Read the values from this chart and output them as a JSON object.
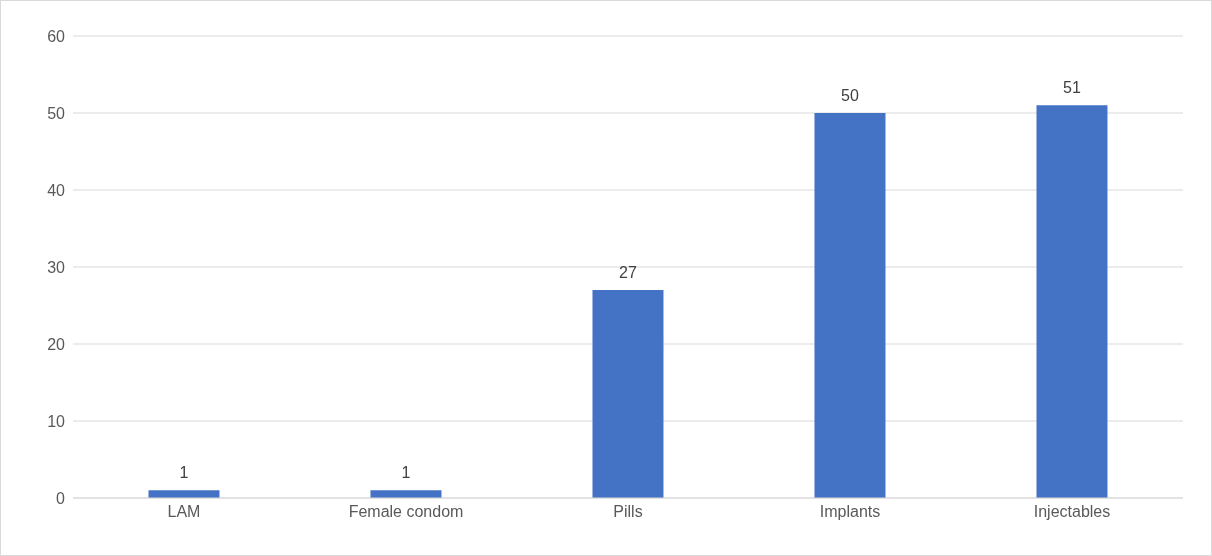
{
  "chart_data": {
    "type": "bar",
    "categories": [
      "LAM",
      "Female condom",
      "Pills",
      "Implants",
      "Injectables"
    ],
    "values": [
      1,
      1,
      27,
      50,
      51
    ],
    "color": "#4472c4",
    "ylim": [
      0,
      60
    ],
    "yticks": [
      0,
      10,
      20,
      30,
      40,
      50,
      60
    ],
    "grid": "y",
    "data_labels": true
  }
}
